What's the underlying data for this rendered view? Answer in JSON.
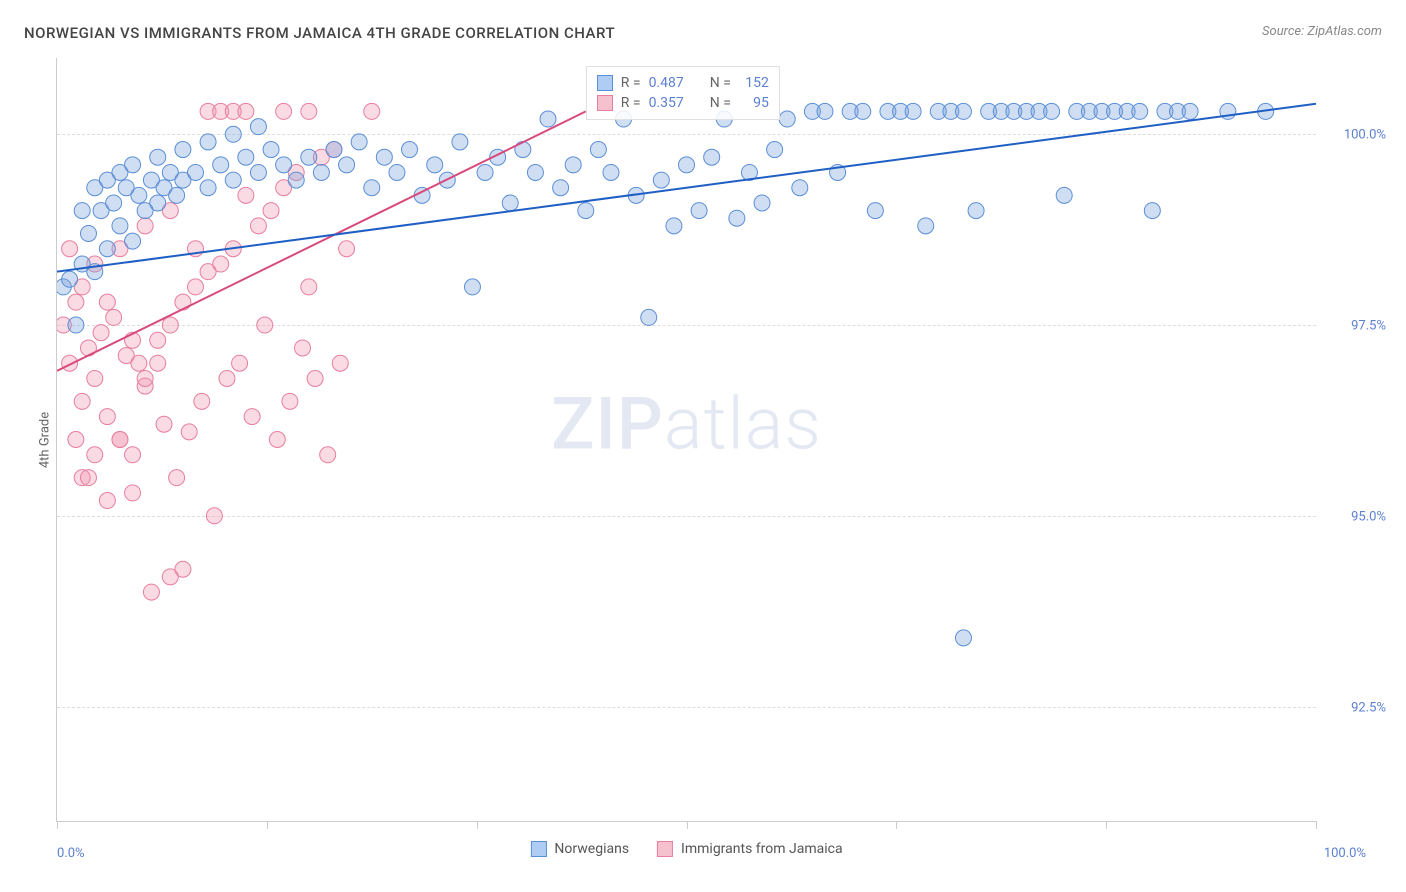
{
  "title": "NORWEGIAN VS IMMIGRANTS FROM JAMAICA 4TH GRADE CORRELATION CHART",
  "source": "Source: ZipAtlas.com",
  "watermark_prefix": "ZIP",
  "watermark_suffix": "atlas",
  "y_axis_title": "4th Grade",
  "x_axis": {
    "min_label": "0.0%",
    "max_label": "100.0%",
    "xlim": [
      0,
      100
    ],
    "tick_positions": [
      0,
      16.67,
      33.33,
      50,
      66.67,
      83.33,
      100
    ]
  },
  "y_axis": {
    "ylim": [
      91,
      101
    ],
    "ticks": [
      {
        "value": 92.5,
        "label": "92.5%"
      },
      {
        "value": 95.0,
        "label": "95.0%"
      },
      {
        "value": 97.5,
        "label": "97.5%"
      },
      {
        "value": 100.0,
        "label": "100.0%"
      }
    ],
    "grid_color": "#dddddd"
  },
  "legend": [
    {
      "label": "Norwegians",
      "fill": "#aeccf4",
      "stroke": "#5b8fd6"
    },
    {
      "label": "Immigrants from Jamaica",
      "fill": "#f6c1ce",
      "stroke": "#e77ea0"
    }
  ],
  "stats": [
    {
      "fill": "#aeccf4",
      "stroke": "#5b8fd6",
      "r_label": "R =",
      "r_value": "0.487",
      "n_label": "N =",
      "n_value": "152"
    },
    {
      "fill": "#f6c1ce",
      "stroke": "#e77ea0",
      "r_label": "R =",
      "r_value": "0.357",
      "n_label": "N =",
      "n_value": "95"
    }
  ],
  "series": {
    "norwegians": {
      "marker_fill": "rgba(120,160,220,0.35)",
      "marker_stroke": "#5b8fd6",
      "marker_radius": 8,
      "line_color": "#1f5fc4",
      "line_width": 2,
      "trend": {
        "x1": 0,
        "y1": 98.2,
        "x2": 100,
        "y2": 100.4
      },
      "points": [
        [
          0.5,
          98.0
        ],
        [
          1,
          98.1
        ],
        [
          1.5,
          97.5
        ],
        [
          2,
          98.3
        ],
        [
          2.5,
          98.7
        ],
        [
          3,
          98.2
        ],
        [
          3.5,
          99.0
        ],
        [
          4,
          98.5
        ],
        [
          4.5,
          99.1
        ],
        [
          5,
          98.8
        ],
        [
          5.5,
          99.3
        ],
        [
          6,
          98.6
        ],
        [
          6.5,
          99.2
        ],
        [
          7,
          99.0
        ],
        [
          7.5,
          99.4
        ],
        [
          8,
          99.1
        ],
        [
          8.5,
          99.3
        ],
        [
          9,
          99.5
        ],
        [
          9.5,
          99.2
        ],
        [
          10,
          99.4
        ],
        [
          11,
          99.5
        ],
        [
          12,
          99.3
        ],
        [
          13,
          99.6
        ],
        [
          14,
          99.4
        ],
        [
          15,
          99.7
        ],
        [
          16,
          99.5
        ],
        [
          17,
          99.8
        ],
        [
          18,
          99.6
        ],
        [
          19,
          99.4
        ],
        [
          20,
          99.7
        ],
        [
          21,
          99.5
        ],
        [
          22,
          99.8
        ],
        [
          23,
          99.6
        ],
        [
          24,
          99.9
        ],
        [
          25,
          99.3
        ],
        [
          26,
          99.7
        ],
        [
          27,
          99.5
        ],
        [
          28,
          99.8
        ],
        [
          29,
          99.2
        ],
        [
          30,
          99.6
        ],
        [
          31,
          99.4
        ],
        [
          32,
          99.9
        ],
        [
          33,
          98.0
        ],
        [
          34,
          99.5
        ],
        [
          35,
          99.7
        ],
        [
          36,
          99.1
        ],
        [
          37,
          99.8
        ],
        [
          38,
          99.5
        ],
        [
          39,
          100.2
        ],
        [
          40,
          99.3
        ],
        [
          41,
          99.6
        ],
        [
          42,
          99.0
        ],
        [
          43,
          99.8
        ],
        [
          44,
          99.5
        ],
        [
          45,
          100.2
        ],
        [
          46,
          99.2
        ],
        [
          47,
          97.6
        ],
        [
          48,
          99.4
        ],
        [
          49,
          98.8
        ],
        [
          50,
          99.6
        ],
        [
          51,
          99.0
        ],
        [
          52,
          99.7
        ],
        [
          53,
          100.2
        ],
        [
          54,
          98.9
        ],
        [
          55,
          99.5
        ],
        [
          56,
          99.1
        ],
        [
          57,
          99.8
        ],
        [
          58,
          100.2
        ],
        [
          59,
          99.3
        ],
        [
          60,
          100.3
        ],
        [
          61,
          100.3
        ],
        [
          62,
          99.5
        ],
        [
          63,
          100.3
        ],
        [
          64,
          100.3
        ],
        [
          65,
          99.0
        ],
        [
          66,
          100.3
        ],
        [
          67,
          100.3
        ],
        [
          68,
          100.3
        ],
        [
          69,
          98.8
        ],
        [
          70,
          100.3
        ],
        [
          71,
          100.3
        ],
        [
          72,
          100.3
        ],
        [
          73,
          99.0
        ],
        [
          74,
          100.3
        ],
        [
          75,
          100.3
        ],
        [
          76,
          100.3
        ],
        [
          77,
          100.3
        ],
        [
          78,
          100.3
        ],
        [
          79,
          100.3
        ],
        [
          80,
          99.2
        ],
        [
          81,
          100.3
        ],
        [
          82,
          100.3
        ],
        [
          83,
          100.3
        ],
        [
          84,
          100.3
        ],
        [
          85,
          100.3
        ],
        [
          86,
          100.3
        ],
        [
          87,
          99.0
        ],
        [
          88,
          100.3
        ],
        [
          89,
          100.3
        ],
        [
          90,
          100.3
        ],
        [
          93,
          100.3
        ],
        [
          96,
          100.3
        ],
        [
          72,
          93.4
        ],
        [
          2,
          99.0
        ],
        [
          3,
          99.3
        ],
        [
          4,
          99.4
        ],
        [
          5,
          99.5
        ],
        [
          6,
          99.6
        ],
        [
          8,
          99.7
        ],
        [
          10,
          99.8
        ],
        [
          12,
          99.9
        ],
        [
          14,
          100.0
        ],
        [
          16,
          100.1
        ]
      ]
    },
    "jamaica": {
      "marker_fill": "rgba(240,150,175,0.35)",
      "marker_stroke": "#e77ea0",
      "marker_radius": 8,
      "line_color": "#d84a7c",
      "line_width": 2,
      "trend": {
        "x1": 0,
        "y1": 96.9,
        "x2": 42,
        "y2": 100.3
      },
      "points": [
        [
          0.5,
          97.5
        ],
        [
          1,
          97.0
        ],
        [
          1.5,
          97.8
        ],
        [
          2,
          96.5
        ],
        [
          2.5,
          97.2
        ],
        [
          3,
          96.8
        ],
        [
          3.5,
          97.4
        ],
        [
          4,
          96.3
        ],
        [
          4.5,
          97.6
        ],
        [
          5,
          96.0
        ],
        [
          5.5,
          97.1
        ],
        [
          6,
          95.8
        ],
        [
          6.5,
          97.0
        ],
        [
          7,
          96.7
        ],
        [
          7.5,
          94.0
        ],
        [
          8,
          97.3
        ],
        [
          8.5,
          96.2
        ],
        [
          9,
          97.5
        ],
        [
          9.5,
          95.5
        ],
        [
          10,
          97.8
        ],
        [
          10.5,
          96.1
        ],
        [
          11,
          98.0
        ],
        [
          11.5,
          96.5
        ],
        [
          12,
          98.2
        ],
        [
          12.5,
          95.0
        ],
        [
          13,
          98.3
        ],
        [
          13.5,
          96.8
        ],
        [
          14,
          98.5
        ],
        [
          14.5,
          97.0
        ],
        [
          15,
          99.2
        ],
        [
          15.5,
          96.3
        ],
        [
          16,
          98.8
        ],
        [
          16.5,
          97.5
        ],
        [
          17,
          99.0
        ],
        [
          17.5,
          96.0
        ],
        [
          18,
          99.3
        ],
        [
          18.5,
          96.5
        ],
        [
          19,
          99.5
        ],
        [
          19.5,
          97.2
        ],
        [
          20,
          98.0
        ],
        [
          20.5,
          96.8
        ],
        [
          21,
          99.7
        ],
        [
          21.5,
          95.8
        ],
        [
          22,
          99.8
        ],
        [
          22.5,
          97.0
        ],
        [
          23,
          98.5
        ],
        [
          9,
          94.2
        ],
        [
          10,
          94.3
        ],
        [
          12,
          100.3
        ],
        [
          13,
          100.3
        ],
        [
          14,
          100.3
        ],
        [
          15,
          100.3
        ],
        [
          18,
          100.3
        ],
        [
          20,
          100.3
        ],
        [
          25,
          100.3
        ],
        [
          1,
          98.5
        ],
        [
          2,
          98.0
        ],
        [
          3,
          98.3
        ],
        [
          4,
          97.8
        ],
        [
          5,
          98.5
        ],
        [
          6,
          97.3
        ],
        [
          7,
          98.8
        ],
        [
          8,
          97.0
        ],
        [
          9,
          99.0
        ],
        [
          11,
          98.5
        ],
        [
          2,
          95.5
        ],
        [
          3,
          95.8
        ],
        [
          4,
          95.2
        ],
        [
          5,
          96.0
        ],
        [
          6,
          95.3
        ],
        [
          7,
          96.8
        ],
        [
          1.5,
          96.0
        ],
        [
          2.5,
          95.5
        ]
      ]
    }
  },
  "styling": {
    "background": "#ffffff",
    "axis_color": "#cccccc",
    "title_color": "#444444",
    "source_color": "#888888",
    "tick_label_color": "#5b7fd1",
    "watermark_color": "rgba(100,130,190,0.18)"
  }
}
